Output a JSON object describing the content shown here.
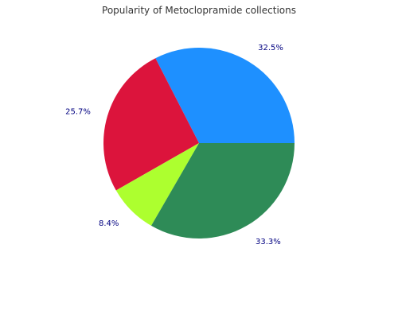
{
  "chart_data": {
    "type": "pie",
    "title": "Popularity of Metoclopramide collections",
    "label_color": "#000080",
    "slices": [
      {
        "label": "32.5%",
        "value": 32.5,
        "color": "#1E90FF"
      },
      {
        "label": "25.7%",
        "value": 25.7,
        "color": "#DC143C"
      },
      {
        "label": "8.4%",
        "value": 8.4,
        "color": "#ADFF2F"
      },
      {
        "label": "33.3%",
        "value": 33.3,
        "color": "#2E8B57"
      }
    ]
  }
}
